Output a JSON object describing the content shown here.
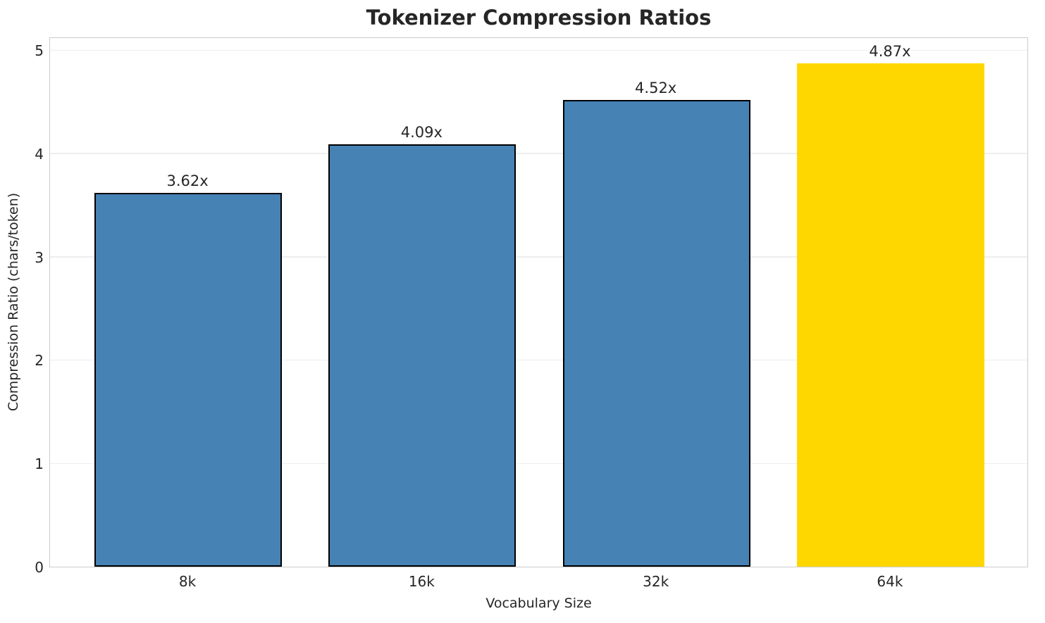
{
  "chart_data": {
    "type": "bar",
    "title": "Tokenizer Compression Ratios",
    "xlabel": "Vocabulary Size",
    "ylabel": "Compression Ratio (chars/token)",
    "categories": [
      "8k",
      "16k",
      "32k",
      "64k"
    ],
    "values": [
      3.62,
      4.09,
      4.52,
      4.87
    ],
    "bar_labels": [
      "3.62x",
      "4.09x",
      "4.52x",
      "4.87x"
    ],
    "yticks": [
      0,
      1,
      2,
      3,
      4,
      5
    ],
    "ylim": [
      0,
      5.13
    ],
    "grid": true,
    "legend": "none",
    "bar_colors": [
      "#4682B4",
      "#4682B4",
      "#4682B4",
      "#FFD700"
    ],
    "bar_edge_colors": [
      "#000000",
      "#000000",
      "#000000",
      "none"
    ],
    "colors": {
      "grid": "#eeeeee",
      "spine": "#cccccc",
      "text": "#262626",
      "background": "#ffffff",
      "highlight": "#FFD700",
      "default_bar": "#4682B4"
    }
  }
}
